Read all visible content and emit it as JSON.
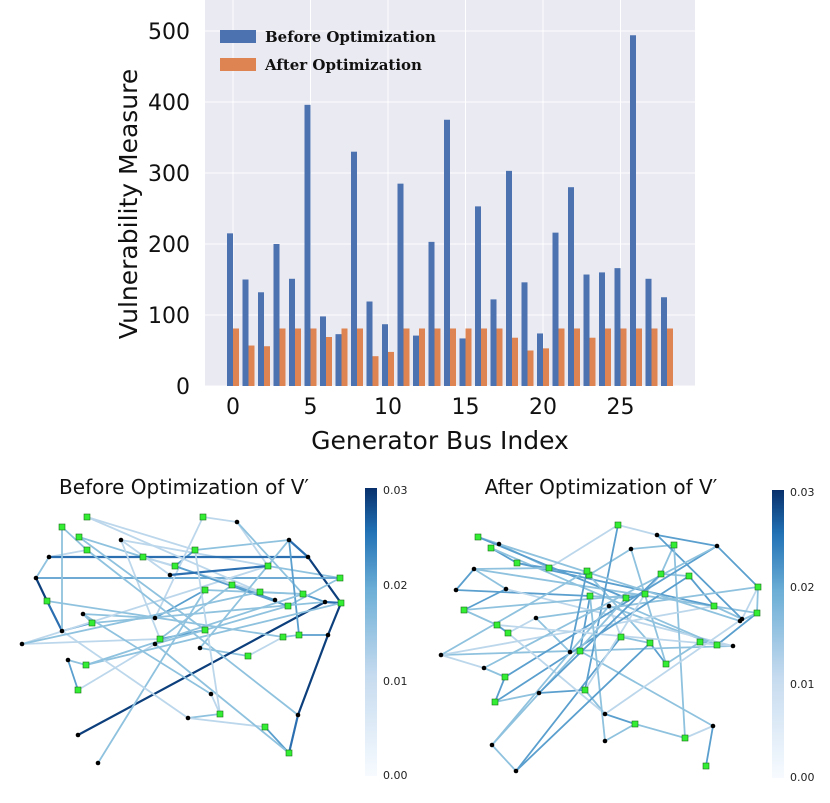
{
  "chart_data": [
    {
      "type": "bar",
      "xlabel": "Generator Bus Index",
      "ylabel": "Vulnerability Measure",
      "ylim": [
        0,
        500
      ],
      "yticks": [
        0,
        100,
        200,
        300,
        400,
        500
      ],
      "xticks": [
        0,
        5,
        10,
        15,
        20,
        25
      ],
      "grid": true,
      "legend_position": "top-left",
      "categories": [
        0,
        1,
        2,
        3,
        4,
        5,
        6,
        7,
        8,
        9,
        10,
        11,
        12,
        13,
        14,
        15,
        16,
        17,
        18,
        19,
        20,
        21,
        22,
        23,
        24,
        25,
        26,
        27,
        28
      ],
      "series": [
        {
          "name": "Before Optimization",
          "color": "#4c72b0",
          "values": [
            215,
            150,
            132,
            200,
            151,
            396,
            98,
            73,
            330,
            119,
            87,
            285,
            71,
            203,
            375,
            67,
            253,
            122,
            303,
            146,
            74,
            216,
            280,
            157,
            160,
            166,
            494,
            151,
            125
          ]
        },
        {
          "name": "After Optimization",
          "color": "#dd8452",
          "values": [
            81,
            57,
            56,
            81,
            81,
            81,
            69,
            81,
            81,
            42,
            48,
            81,
            81,
            81,
            81,
            81,
            81,
            81,
            68,
            50,
            53,
            81,
            81,
            68,
            81,
            81,
            81,
            81,
            81
          ]
        }
      ]
    },
    {
      "type": "network",
      "title": "Before Optimization of  V′",
      "colorbar": {
        "min": 0.0,
        "max": 0.03,
        "ticks": [
          "0.00",
          "0.01",
          "0.02",
          "0.03"
        ]
      }
    },
    {
      "type": "network",
      "title": "After Optimization of  V′",
      "colorbar": {
        "min": 0.0,
        "max": 0.03,
        "ticks": [
          "0.00",
          "0.01",
          "0.02",
          "0.03"
        ]
      }
    }
  ],
  "colors": {
    "plot_background": "#eaeaf2",
    "generator_node": "#33ee33",
    "bus_node": "#000000",
    "edge_scale_low": "#f7fbff",
    "edge_scale_mid": "#6baed6",
    "edge_scale_high": "#08306b"
  }
}
